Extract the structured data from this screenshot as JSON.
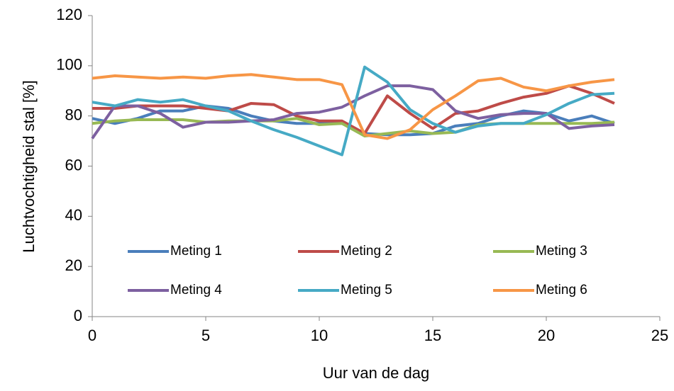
{
  "chart_data": {
    "type": "line",
    "x_label": "Uur van de dag",
    "y_label": "Luchtvochtigheid stal [%]",
    "x": [
      0,
      1,
      2,
      3,
      4,
      5,
      6,
      7,
      8,
      9,
      10,
      11,
      12,
      13,
      14,
      15,
      16,
      17,
      18,
      19,
      20,
      21,
      22,
      23
    ],
    "series": [
      {
        "name": "Meting 1",
        "color": "#4a7ebb",
        "values": [
          79,
          77,
          79,
          82,
          82,
          84,
          83,
          80,
          78,
          77,
          77,
          77,
          73,
          72.5,
          72.5,
          73,
          76,
          77,
          80,
          82,
          81,
          78,
          80,
          77
        ]
      },
      {
        "name": "Meting 2",
        "color": "#be4b48",
        "values": [
          83,
          83,
          84,
          84,
          84,
          83,
          82,
          85,
          84.5,
          80,
          78,
          78,
          73,
          88,
          81,
          75,
          81,
          82,
          85,
          87.5,
          89,
          92,
          89,
          85
        ]
      },
      {
        "name": "Meting 3",
        "color": "#98b954",
        "values": [
          77,
          78,
          78.5,
          78.5,
          78.5,
          77.5,
          78,
          78,
          78,
          79,
          76.5,
          77,
          72,
          73,
          74,
          73,
          73.5,
          76.5,
          77,
          77,
          77,
          77,
          77,
          77.5
        ]
      },
      {
        "name": "Meting 4",
        "color": "#7d60a0",
        "values": [
          71,
          84,
          84,
          81,
          75.5,
          77.5,
          77.5,
          78,
          78.5,
          81,
          81.5,
          83.5,
          88,
          92,
          92,
          90.5,
          82,
          79,
          80.5,
          81,
          81,
          75,
          76,
          76.5
        ]
      },
      {
        "name": "Meting 5",
        "color": "#46aac5",
        "values": [
          85.5,
          84,
          86.5,
          85.5,
          86.5,
          84,
          82,
          78,
          74.5,
          71.5,
          68,
          64.5,
          99.5,
          93.5,
          82.5,
          77,
          73.5,
          76,
          77,
          77,
          80.5,
          85,
          88.5,
          89
        ]
      },
      {
        "name": "Meting 6",
        "color": "#f79646",
        "values": [
          95,
          96,
          95.5,
          95,
          95.5,
          95,
          96,
          96.5,
          95.5,
          94.5,
          94.5,
          92.5,
          72.5,
          71,
          74.5,
          82.5,
          88,
          94,
          95,
          91.5,
          90,
          92,
          93.5,
          94.5
        ]
      }
    ],
    "xlim": [
      0,
      25
    ],
    "xticks": [
      0,
      5,
      10,
      15,
      20,
      25
    ],
    "ylim": [
      0,
      120
    ],
    "yticks": [
      0,
      20,
      40,
      60,
      80,
      100,
      120
    ],
    "grid": false,
    "legend": "bottom"
  }
}
